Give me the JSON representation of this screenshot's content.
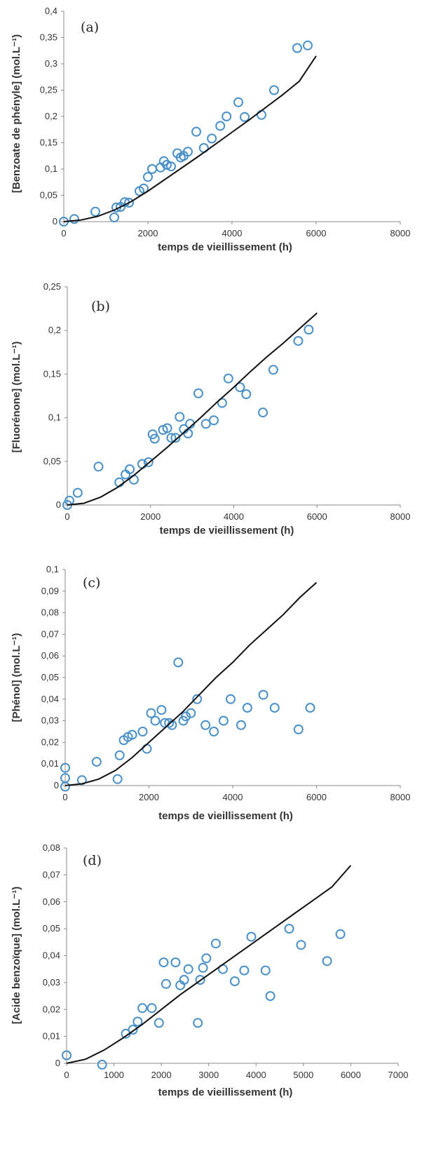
{
  "chart_data": [
    {
      "type": "scatter",
      "panel_label": "(a)",
      "title": "",
      "xlabel": "temps de vieillissement (h)",
      "ylabel": "[Benzoate de phényle] (mol.L⁻¹)",
      "xlim": [
        0,
        8000
      ],
      "ylim": [
        0,
        0.4
      ],
      "x_ticks": [
        "0",
        "2000",
        "4000",
        "6000",
        "8000"
      ],
      "y_ticks": [
        "0",
        "0,05",
        "0,1",
        "0,15",
        "0,2",
        "0,25",
        "0,3",
        "0,35",
        "0,4"
      ],
      "grid": false,
      "legend": "none",
      "series": [
        {
          "kind": "points",
          "marker": "open-circle",
          "color": "#4a90c8",
          "x": [
            0,
            250,
            750,
            1200,
            1250,
            1350,
            1450,
            1550,
            1800,
            1900,
            2000,
            2100,
            2300,
            2380,
            2450,
            2550,
            2700,
            2780,
            2850,
            2950,
            3150,
            3330,
            3520,
            3720,
            3870,
            4150,
            4300,
            4700,
            5000,
            5550,
            5800
          ],
          "y": [
            0,
            0.005,
            0.019,
            0.008,
            0.027,
            0.028,
            0.037,
            0.036,
            0.058,
            0.063,
            0.085,
            0.1,
            0.103,
            0.115,
            0.108,
            0.105,
            0.13,
            0.122,
            0.125,
            0.133,
            0.171,
            0.14,
            0.158,
            0.182,
            0.2,
            0.227,
            0.199,
            0.203,
            0.25,
            0.33,
            0.335
          ]
        },
        {
          "kind": "model",
          "color": "#111111",
          "x": [
            0,
            400,
            800,
            1200,
            1600,
            2000,
            2400,
            2800,
            3200,
            3600,
            4000,
            4400,
            4800,
            5200,
            5600,
            6000
          ],
          "y": [
            0,
            0.003,
            0.01,
            0.022,
            0.038,
            0.058,
            0.08,
            0.102,
            0.124,
            0.147,
            0.17,
            0.193,
            0.217,
            0.241,
            0.267,
            0.315
          ]
        }
      ]
    },
    {
      "type": "scatter",
      "panel_label": "(b)",
      "title": "",
      "xlabel": "temps de vieillissement (h)",
      "ylabel": "[Fluorénone] (mol.L⁻¹)",
      "xlim": [
        0,
        8000
      ],
      "ylim": [
        0,
        0.25
      ],
      "x_ticks": [
        "0",
        "2000",
        "4000",
        "6000",
        "8000"
      ],
      "y_ticks": [
        "0",
        "0,05",
        "0,1",
        "0,15",
        "0,2",
        "0,25"
      ],
      "grid": false,
      "legend": "none",
      "series": [
        {
          "kind": "points",
          "marker": "open-circle",
          "color": "#4a90c8",
          "x": [
            0,
            50,
            250,
            750,
            1250,
            1400,
            1500,
            1600,
            1800,
            1950,
            2050,
            2100,
            2300,
            2400,
            2500,
            2600,
            2700,
            2800,
            2900,
            2950,
            3150,
            3330,
            3520,
            3720,
            3870,
            4150,
            4300,
            4700,
            4950,
            5550,
            5800
          ],
          "y": [
            0,
            0.005,
            0.014,
            0.044,
            0.026,
            0.035,
            0.041,
            0.029,
            0.047,
            0.049,
            0.081,
            0.076,
            0.086,
            0.088,
            0.077,
            0.077,
            0.101,
            0.087,
            0.082,
            0.093,
            0.128,
            0.093,
            0.097,
            0.117,
            0.145,
            0.135,
            0.127,
            0.106,
            0.155,
            0.188,
            0.201
          ]
        },
        {
          "kind": "model",
          "color": "#111111",
          "x": [
            0,
            400,
            800,
            1200,
            1600,
            2000,
            2400,
            2800,
            3200,
            3600,
            4000,
            4400,
            4800,
            5200,
            5600,
            6000
          ],
          "y": [
            0,
            0.002,
            0.009,
            0.02,
            0.034,
            0.05,
            0.066,
            0.083,
            0.1,
            0.118,
            0.135,
            0.153,
            0.17,
            0.186,
            0.203,
            0.22
          ]
        }
      ]
    },
    {
      "type": "scatter",
      "panel_label": "(c)",
      "title": "",
      "xlabel": "temps de vieillissement (h)",
      "ylabel": "[Phénol] (mol.L⁻¹)",
      "xlim": [
        0,
        8000
      ],
      "ylim": [
        0,
        0.1
      ],
      "x_ticks": [
        "0",
        "2000",
        "4000",
        "6000",
        "8000"
      ],
      "y_ticks": [
        "0",
        "0,01",
        "0,02",
        "0,03",
        "0,04",
        "0,05",
        "0,06",
        "0,07",
        "0,08",
        "0,09",
        "0,1"
      ],
      "grid": false,
      "legend": "none",
      "series": [
        {
          "kind": "points",
          "marker": "open-circle",
          "color": "#4a90c8",
          "x": [
            0,
            0,
            0,
            400,
            750,
            1250,
            1300,
            1400,
            1500,
            1600,
            1850,
            1950,
            2050,
            2150,
            2300,
            2380,
            2480,
            2550,
            2700,
            2820,
            2880,
            3000,
            3150,
            3350,
            3550,
            3780,
            3950,
            4200,
            4350,
            4730,
            5000,
            5570,
            5850
          ],
          "y": [
            -0.0005,
            0.0035,
            0.0082,
            0.0025,
            0.011,
            0.003,
            0.014,
            0.021,
            0.0225,
            0.0235,
            0.025,
            0.017,
            0.0335,
            0.03,
            0.035,
            0.029,
            0.029,
            0.028,
            0.057,
            0.03,
            0.032,
            0.0335,
            0.04,
            0.028,
            0.025,
            0.03,
            0.04,
            0.028,
            0.036,
            0.042,
            0.036,
            0.026,
            0.036
          ]
        },
        {
          "kind": "model",
          "color": "#111111",
          "x": [
            0,
            400,
            800,
            1200,
            1600,
            2000,
            2400,
            2800,
            3200,
            3600,
            4000,
            4400,
            4800,
            5200,
            5600,
            6000
          ],
          "y": [
            0,
            0.0008,
            0.003,
            0.007,
            0.013,
            0.02,
            0.027,
            0.034,
            0.042,
            0.05,
            0.057,
            0.065,
            0.072,
            0.079,
            0.087,
            0.094
          ]
        }
      ]
    },
    {
      "type": "scatter",
      "panel_label": "(d)",
      "title": "",
      "xlabel": "temps de vieillissement (h)",
      "ylabel": "[Acide benzoïque] (mol.L⁻¹)",
      "xlim": [
        0,
        7000
      ],
      "ylim": [
        0,
        0.08
      ],
      "x_ticks": [
        "0",
        "1000",
        "2000",
        "3000",
        "4000",
        "5000",
        "6000",
        "7000"
      ],
      "y_ticks": [
        "0",
        "0,01",
        "0,02",
        "0,03",
        "0,04",
        "0,05",
        "0,06",
        "0,07",
        "0,08"
      ],
      "grid": false,
      "legend": "none",
      "series": [
        {
          "kind": "points",
          "marker": "open-circle",
          "color": "#4a90c8",
          "x": [
            0,
            750,
            1250,
            1400,
            1500,
            1600,
            1800,
            1950,
            2050,
            2100,
            2300,
            2400,
            2480,
            2570,
            2770,
            2820,
            2880,
            2950,
            3150,
            3300,
            3550,
            3750,
            3900,
            4200,
            4300,
            4700,
            4950,
            5500,
            5780
          ],
          "y": [
            0.003,
            -0.0005,
            0.011,
            0.0125,
            0.0155,
            0.0205,
            0.0205,
            0.015,
            0.0375,
            0.0295,
            0.0375,
            0.029,
            0.031,
            0.035,
            0.015,
            0.031,
            0.0355,
            0.039,
            0.0445,
            0.035,
            0.0305,
            0.0345,
            0.047,
            0.0345,
            0.025,
            0.05,
            0.044,
            0.038,
            0.048
          ]
        },
        {
          "kind": "model",
          "color": "#111111",
          "x": [
            0,
            400,
            800,
            1200,
            1600,
            2000,
            2400,
            2800,
            3200,
            3600,
            4000,
            4400,
            4800,
            5200,
            5600,
            6000
          ],
          "y": [
            0,
            0.0015,
            0.005,
            0.0095,
            0.0145,
            0.02,
            0.0255,
            0.0305,
            0.0355,
            0.0405,
            0.0455,
            0.0505,
            0.0555,
            0.0605,
            0.0655,
            0.0735
          ]
        }
      ]
    }
  ]
}
